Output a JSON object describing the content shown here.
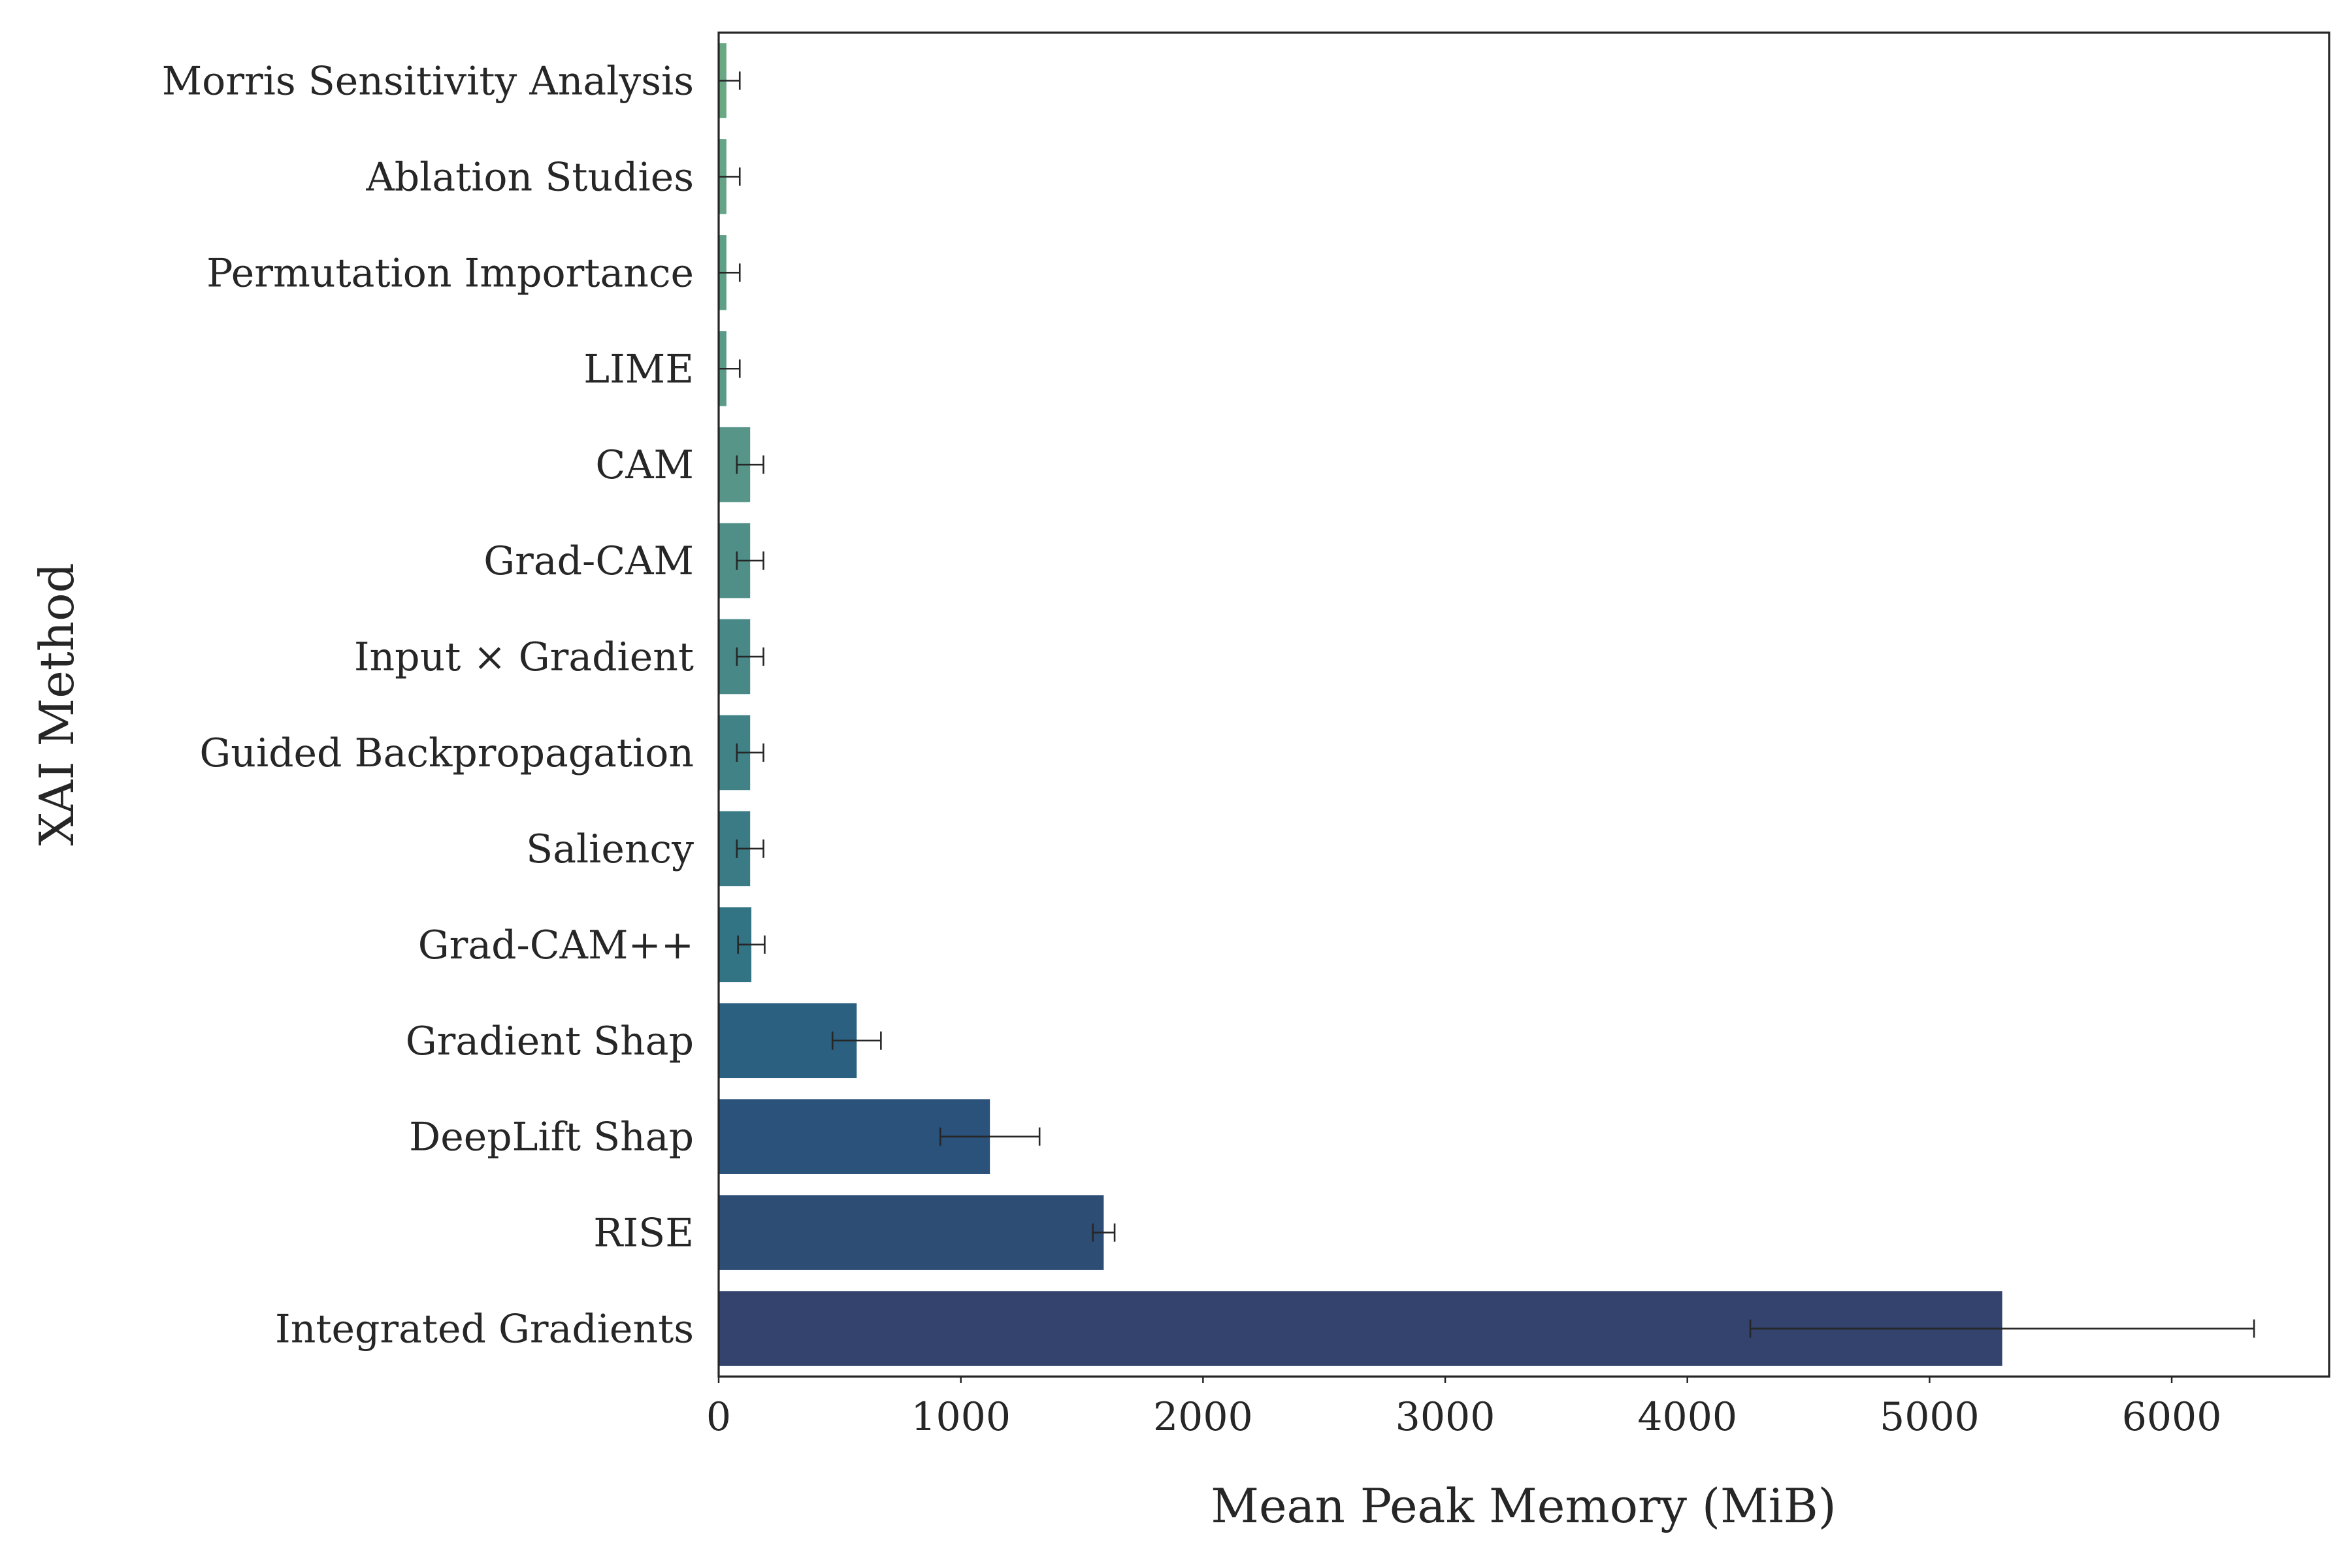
{
  "chart_data": {
    "type": "bar",
    "orientation": "horizontal",
    "title": "",
    "xlabel": "Mean Peak Memory (MiB)",
    "ylabel": "XAI Method",
    "xlim": [
      0,
      6650
    ],
    "xticks": [
      0,
      1000,
      2000,
      3000,
      4000,
      5000,
      6000
    ],
    "grid": false,
    "legend": "none",
    "categories": [
      "Morris Sensitivity Analysis",
      "Ablation Studies",
      "Permutation Importance",
      "LIME",
      "CAM",
      "Grad-CAM",
      "Input × Gradient",
      "Guided Backpropagation",
      "Saliency",
      "Grad-CAM++",
      "Gradient Shap",
      "DeepLift Shap",
      "RISE",
      "Integrated Gradients"
    ],
    "values": [
      32,
      32,
      32,
      32,
      130,
      130,
      130,
      130,
      130,
      135,
      570,
      1120,
      1590,
      5300
    ],
    "error": [
      55,
      55,
      55,
      55,
      55,
      55,
      55,
      55,
      55,
      55,
      100,
      205,
      45,
      1040
    ],
    "colors": [
      "#6aa884",
      "#65a486",
      "#609f87",
      "#5b9a88",
      "#569588",
      "#4f8f88",
      "#488988",
      "#418287",
      "#3a7b86",
      "#337484",
      "#2b6080",
      "#2b527b",
      "#2e4d74",
      "#33436d"
    ]
  }
}
